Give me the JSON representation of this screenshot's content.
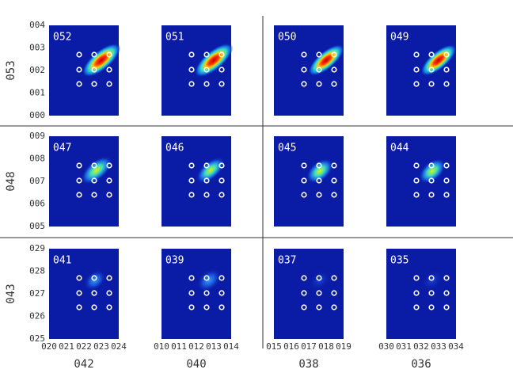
{
  "panels": [
    {
      "label": "052"
    },
    {
      "label": "051"
    },
    {
      "label": "050"
    },
    {
      "label": "049"
    },
    {
      "label": "047"
    },
    {
      "label": "046"
    },
    {
      "label": "045"
    },
    {
      "label": "044"
    },
    {
      "label": "041"
    },
    {
      "label": "039"
    },
    {
      "label": "037"
    },
    {
      "label": "035"
    }
  ],
  "row_labels": [
    "053",
    "048",
    "043"
  ],
  "col_labels": [
    "042",
    "040",
    "038",
    "036"
  ],
  "y_ticks": [
    [
      "004",
      "003",
      "002",
      "001",
      "000"
    ],
    [
      "009",
      "008",
      "007",
      "006",
      "005"
    ],
    [
      "029",
      "028",
      "027",
      "026",
      "025"
    ]
  ],
  "x_ticks": [
    [
      "020",
      "021",
      "022",
      "023",
      "024"
    ],
    [
      "010",
      "011",
      "012",
      "013",
      "014"
    ],
    [
      "015",
      "016",
      "017",
      "018",
      "019"
    ],
    [
      "030",
      "031",
      "032",
      "033",
      "034"
    ]
  ]
}
